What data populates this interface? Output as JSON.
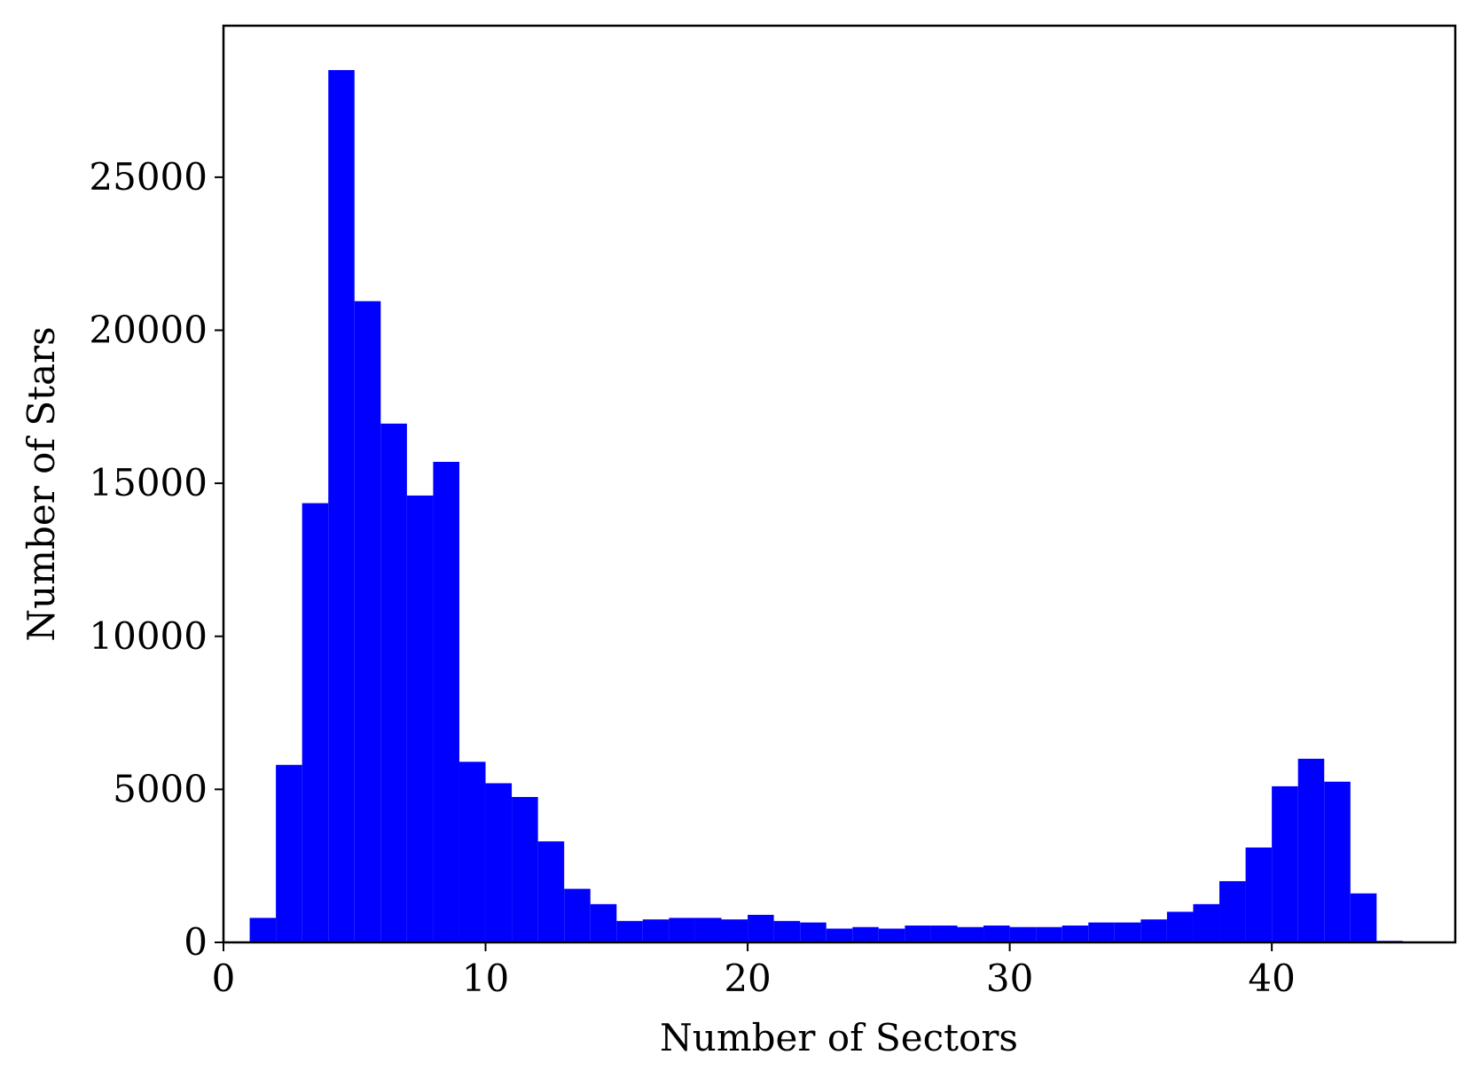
{
  "chart_data": {
    "type": "bar",
    "title": "",
    "xlabel": "Number of Sectors",
    "ylabel": "Number of Stars",
    "xlim": [
      0,
      47
    ],
    "ylim": [
      0,
      29950
    ],
    "grid": false,
    "legend": "none",
    "bar_color": "#0000ff",
    "bins_start": [
      1,
      2,
      3,
      4,
      5,
      6,
      7,
      8,
      9,
      10,
      11,
      12,
      13,
      14,
      15,
      16,
      17,
      18,
      19,
      20,
      21,
      22,
      23,
      24,
      25,
      26,
      27,
      28,
      29,
      30,
      31,
      32,
      33,
      34,
      35,
      36,
      37,
      38,
      39,
      40,
      41,
      42,
      43,
      44
    ],
    "bin_width": 1,
    "values": [
      800,
      5800,
      14350,
      28500,
      20950,
      16950,
      14600,
      15700,
      5900,
      5200,
      4750,
      3300,
      1750,
      1250,
      700,
      750,
      800,
      800,
      750,
      900,
      700,
      650,
      450,
      500,
      450,
      550,
      550,
      500,
      550,
      500,
      500,
      550,
      650,
      650,
      750,
      1000,
      1250,
      2000,
      3100,
      5100,
      6000,
      5250,
      1600,
      50
    ],
    "xticks": [
      0,
      10,
      20,
      30,
      40
    ],
    "xtick_labels": [
      "0",
      "10",
      "20",
      "30",
      "40"
    ],
    "yticks": [
      0,
      5000,
      10000,
      15000,
      20000,
      25000
    ],
    "ytick_labels": [
      "0",
      "5000",
      "10000",
      "15000",
      "20000",
      "25000"
    ]
  }
}
